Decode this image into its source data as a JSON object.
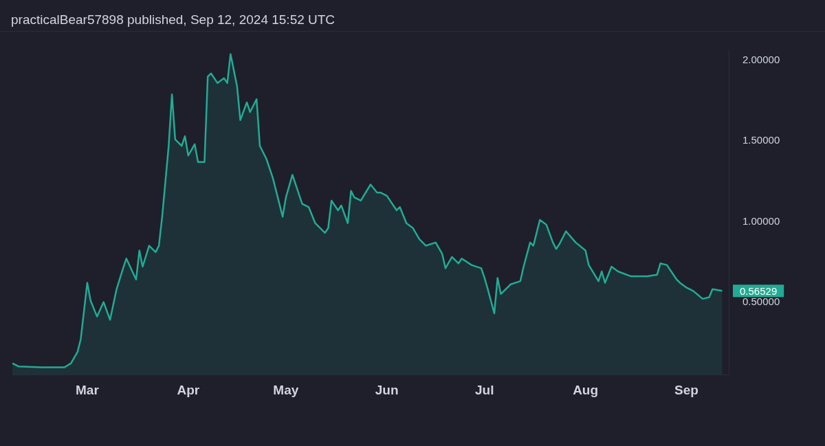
{
  "chart_data": {
    "type": "area",
    "title": "practicalBear57898 published, Sep 12, 2024 15:52 UTC",
    "x": [
      "2024-02-07",
      "2024-02-09",
      "2024-02-16",
      "2024-02-23",
      "2024-02-25",
      "2024-02-27",
      "2024-02-28",
      "2024-03-01",
      "2024-03-02",
      "2024-03-04",
      "2024-03-06",
      "2024-03-08",
      "2024-03-10",
      "2024-03-12",
      "2024-03-13",
      "2024-03-16",
      "2024-03-17",
      "2024-03-18",
      "2024-03-20",
      "2024-03-22",
      "2024-03-23",
      "2024-03-24",
      "2024-03-26",
      "2024-03-27",
      "2024-03-28",
      "2024-03-30",
      "2024-03-31",
      "2024-04-01",
      "2024-04-03",
      "2024-04-04",
      "2024-04-06",
      "2024-04-07",
      "2024-04-08",
      "2024-04-10",
      "2024-04-12",
      "2024-04-13",
      "2024-04-14",
      "2024-04-16",
      "2024-04-17",
      "2024-04-19",
      "2024-04-20",
      "2024-04-22",
      "2024-04-23",
      "2024-04-25",
      "2024-04-27",
      "2024-04-30",
      "2024-05-01",
      "2024-05-03",
      "2024-05-06",
      "2024-05-08",
      "2024-05-10",
      "2024-05-13",
      "2024-05-14",
      "2024-05-15",
      "2024-05-17",
      "2024-05-18",
      "2024-05-20",
      "2024-05-21",
      "2024-05-22",
      "2024-05-24",
      "2024-05-27",
      "2024-05-29",
      "2024-05-30",
      "2024-06-01",
      "2024-06-04",
      "2024-06-05",
      "2024-06-07",
      "2024-06-09",
      "2024-06-11",
      "2024-06-13",
      "2024-06-16",
      "2024-06-18",
      "2024-06-19",
      "2024-06-21",
      "2024-06-23",
      "2024-06-24",
      "2024-06-27",
      "2024-06-30",
      "2024-07-01",
      "2024-07-02",
      "2024-07-04",
      "2024-07-05",
      "2024-07-06",
      "2024-07-09",
      "2024-07-12",
      "2024-07-13",
      "2024-07-15",
      "2024-07-16",
      "2024-07-18",
      "2024-07-20",
      "2024-07-22",
      "2024-07-23",
      "2024-07-24",
      "2024-07-26",
      "2024-07-29",
      "2024-08-01",
      "2024-08-02",
      "2024-08-05",
      "2024-08-06",
      "2024-08-07",
      "2024-08-09",
      "2024-08-11",
      "2024-08-15",
      "2024-08-20",
      "2024-08-23",
      "2024-08-24",
      "2024-08-26",
      "2024-08-29",
      "2024-08-30",
      "2024-09-01",
      "2024-09-03",
      "2024-09-06",
      "2024-09-08",
      "2024-09-09",
      "2024-09-12"
    ],
    "series": [
      {
        "color": "#22ab94",
        "values": [
          0.12,
          0.1,
          0.095,
          0.095,
          0.12,
          0.19,
          0.27,
          0.62,
          0.51,
          0.41,
          0.5,
          0.39,
          0.58,
          0.71,
          0.77,
          0.64,
          0.82,
          0.72,
          0.85,
          0.81,
          0.85,
          1.03,
          1.47,
          1.79,
          1.51,
          1.47,
          1.53,
          1.41,
          1.48,
          1.37,
          1.37,
          1.9,
          1.92,
          1.86,
          1.89,
          1.86,
          2.04,
          1.84,
          1.63,
          1.74,
          1.68,
          1.76,
          1.47,
          1.39,
          1.27,
          1.03,
          1.15,
          1.29,
          1.11,
          1.09,
          0.99,
          0.93,
          0.96,
          1.13,
          1.07,
          1.1,
          0.99,
          1.19,
          1.15,
          1.13,
          1.23,
          1.18,
          1.18,
          1.16,
          1.07,
          1.09,
          0.99,
          0.96,
          0.89,
          0.85,
          0.87,
          0.8,
          0.71,
          0.78,
          0.74,
          0.77,
          0.73,
          0.71,
          0.65,
          0.58,
          0.43,
          0.65,
          0.55,
          0.61,
          0.63,
          0.72,
          0.87,
          0.85,
          1.01,
          0.98,
          0.87,
          0.83,
          0.86,
          0.94,
          0.87,
          0.82,
          0.73,
          0.63,
          0.69,
          0.62,
          0.72,
          0.69,
          0.66,
          0.66,
          0.67,
          0.74,
          0.73,
          0.64,
          0.62,
          0.59,
          0.57,
          0.52,
          0.53,
          0.58,
          0.57
        ]
      }
    ],
    "xlim": [
      "2024-02-07",
      "2024-09-14"
    ],
    "xticks": [
      {
        "value": "2024-03-01",
        "label": "Mar"
      },
      {
        "value": "2024-04-01",
        "label": "Apr"
      },
      {
        "value": "2024-05-01",
        "label": "May"
      },
      {
        "value": "2024-06-01",
        "label": "Jun"
      },
      {
        "value": "2024-07-01",
        "label": "Jul"
      },
      {
        "value": "2024-08-01",
        "label": "Aug"
      },
      {
        "value": "2024-09-01",
        "label": "Sep"
      }
    ],
    "ylim": [
      0.05,
      2.06
    ],
    "yticks": [
      {
        "value": 0.5,
        "label": "0.50000"
      },
      {
        "value": 1,
        "label": "1.00000"
      },
      {
        "value": 1.5,
        "label": "1.50000"
      },
      {
        "value": 2,
        "label": "2.00000"
      }
    ],
    "annotations": [
      {
        "text": "0.56529",
        "x": "2024-09-12",
        "y": 0.56529
      }
    ],
    "grid": false,
    "legend": false
  }
}
